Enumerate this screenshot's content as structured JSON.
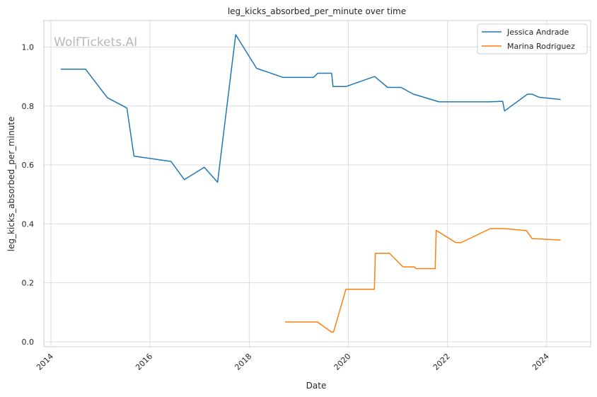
{
  "watermark": "WolfTickets.AI",
  "chart_data": {
    "type": "line",
    "title": "leg_kicks_absorbed_per_minute over time",
    "xlabel": "Date",
    "ylabel": "leg_kicks_absorbed_per_minute",
    "xlim": [
      "2013-11-10",
      "2024-11-20"
    ],
    "ylim": [
      -0.017,
      1.09
    ],
    "x_ticks": [
      "2014",
      "2016",
      "2018",
      "2020",
      "2022",
      "2024"
    ],
    "y_ticks": [
      "0.0",
      "0.2",
      "0.4",
      "0.6",
      "0.8",
      "1.0"
    ],
    "grid": true,
    "legend_position": "top-right",
    "series": [
      {
        "name": "Jessica Andrade",
        "color": "#1f77b4",
        "points": [
          [
            "2014-03-15",
            0.925
          ],
          [
            "2014-09-13",
            0.925
          ],
          [
            "2015-02-21",
            0.828
          ],
          [
            "2015-07-15",
            0.793
          ],
          [
            "2015-09-05",
            0.63
          ],
          [
            "2016-06-04",
            0.612
          ],
          [
            "2016-09-10",
            0.55
          ],
          [
            "2017-02-04",
            0.592
          ],
          [
            "2017-05-13",
            0.541
          ],
          [
            "2017-09-23",
            1.042
          ],
          [
            "2018-02-24",
            0.928
          ],
          [
            "2018-09-08",
            0.897
          ],
          [
            "2019-04-20",
            0.897
          ],
          [
            "2019-05-20",
            0.911
          ],
          [
            "2019-08-31",
            0.911
          ],
          [
            "2019-09-10",
            0.866
          ],
          [
            "2019-12-14",
            0.866
          ],
          [
            "2020-07-12",
            0.9
          ],
          [
            "2020-10-17",
            0.863
          ],
          [
            "2021-01-23",
            0.863
          ],
          [
            "2021-04-24",
            0.84
          ],
          [
            "2021-05-10",
            0.838
          ],
          [
            "2021-10-30",
            0.814
          ],
          [
            "2022-11-05",
            0.814
          ],
          [
            "2023-02-11",
            0.816
          ],
          [
            "2023-02-25",
            0.783
          ],
          [
            "2023-08-12",
            0.84
          ],
          [
            "2023-09-16",
            0.84
          ],
          [
            "2023-11-04",
            0.83
          ],
          [
            "2024-04-13",
            0.822
          ]
        ]
      },
      {
        "name": "Marina Rodriguez",
        "color": "#ff7f0e",
        "points": [
          [
            "2018-09-22",
            0.067
          ],
          [
            "2019-05-18",
            0.067
          ],
          [
            "2019-08-31",
            0.033
          ],
          [
            "2019-09-14",
            0.033
          ],
          [
            "2019-12-14",
            0.178
          ],
          [
            "2020-07-11",
            0.178
          ],
          [
            "2020-07-18",
            0.3
          ],
          [
            "2020-10-31",
            0.3
          ],
          [
            "2021-02-06",
            0.254
          ],
          [
            "2021-05-01",
            0.254
          ],
          [
            "2021-05-15",
            0.248
          ],
          [
            "2021-10-02",
            0.248
          ],
          [
            "2021-10-09",
            0.378
          ],
          [
            "2022-03-01",
            0.337
          ],
          [
            "2022-04-09",
            0.336
          ],
          [
            "2022-11-12",
            0.384
          ],
          [
            "2023-02-18",
            0.384
          ],
          [
            "2023-08-05",
            0.377
          ],
          [
            "2023-09-16",
            0.35
          ],
          [
            "2023-11-11",
            0.349
          ],
          [
            "2024-04-13",
            0.345
          ]
        ]
      }
    ]
  }
}
